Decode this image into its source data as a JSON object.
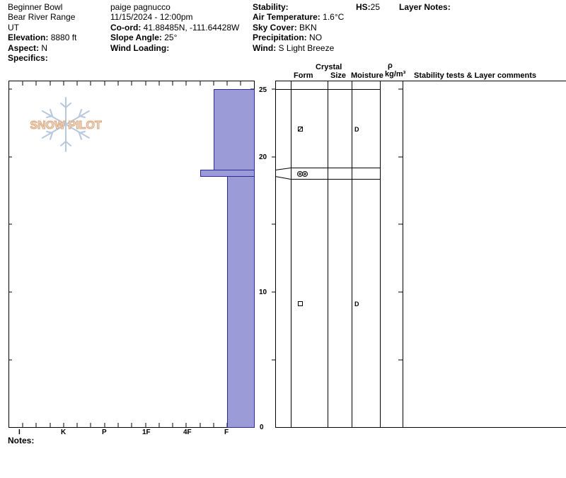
{
  "header": {
    "location": "Beginner Bowl",
    "range": "Bear River Range",
    "state": "UT",
    "observer": "paige pagnucco",
    "datetime": "11/15/2024 - 12:00pm",
    "elevation_label": "Elevation:",
    "elevation": " 8880 ft",
    "aspect_label": "Aspect:",
    "aspect": " N",
    "specifics_label": "Specifics:",
    "coord_label": "Co-ord:",
    "coord": " 41.88485N, -111.64428W",
    "slope_label": "Slope Angle:",
    "slope": " 25°",
    "wind_loading_label": "Wind Loading:",
    "stability_label": "Stability:",
    "air_temp_label": "Air Temperature:",
    "air_temp": " 1.6°C",
    "sky_label": "Sky Cover:",
    "sky": " BKN",
    "precip_label": "Precipitation:",
    "precip": " NO",
    "wind_label": "Wind:",
    "wind": "  S Light Breeze",
    "hs_label": "HS:",
    "hs": "25",
    "layer_notes_label": "Layer Notes:"
  },
  "logo": {
    "text": "SNOW PILOT"
  },
  "columns": {
    "crystal": "Crystal",
    "form": "Form",
    "size": "Size",
    "moisture": "Moisture",
    "rho": "ρ",
    "density": "kg/m³",
    "comments": "Stability tests & Layer comments"
  },
  "depth_axis": {
    "labels": [
      "25",
      "20",
      "10",
      "0"
    ],
    "max": 25
  },
  "hardness_axis": {
    "labels": [
      "I",
      "K",
      "P",
      "1F",
      "4F",
      "F"
    ]
  },
  "layers": [
    {
      "top": 24.5,
      "bottom": 18.6,
      "hardness": "F",
      "form": "faceted-rounded",
      "moisture": "D"
    },
    {
      "top": 18.6,
      "bottom": 18.1,
      "hardness": "4F",
      "form": "melt-freeze",
      "moisture": ""
    },
    {
      "top": 18.1,
      "bottom": 0,
      "hardness": "F",
      "form": "faceted",
      "moisture": "D"
    }
  ],
  "notes_label": "Notes:",
  "colors": {
    "layer_fill": "#9b9bd8",
    "layer_stroke": "#2a2a99"
  }
}
